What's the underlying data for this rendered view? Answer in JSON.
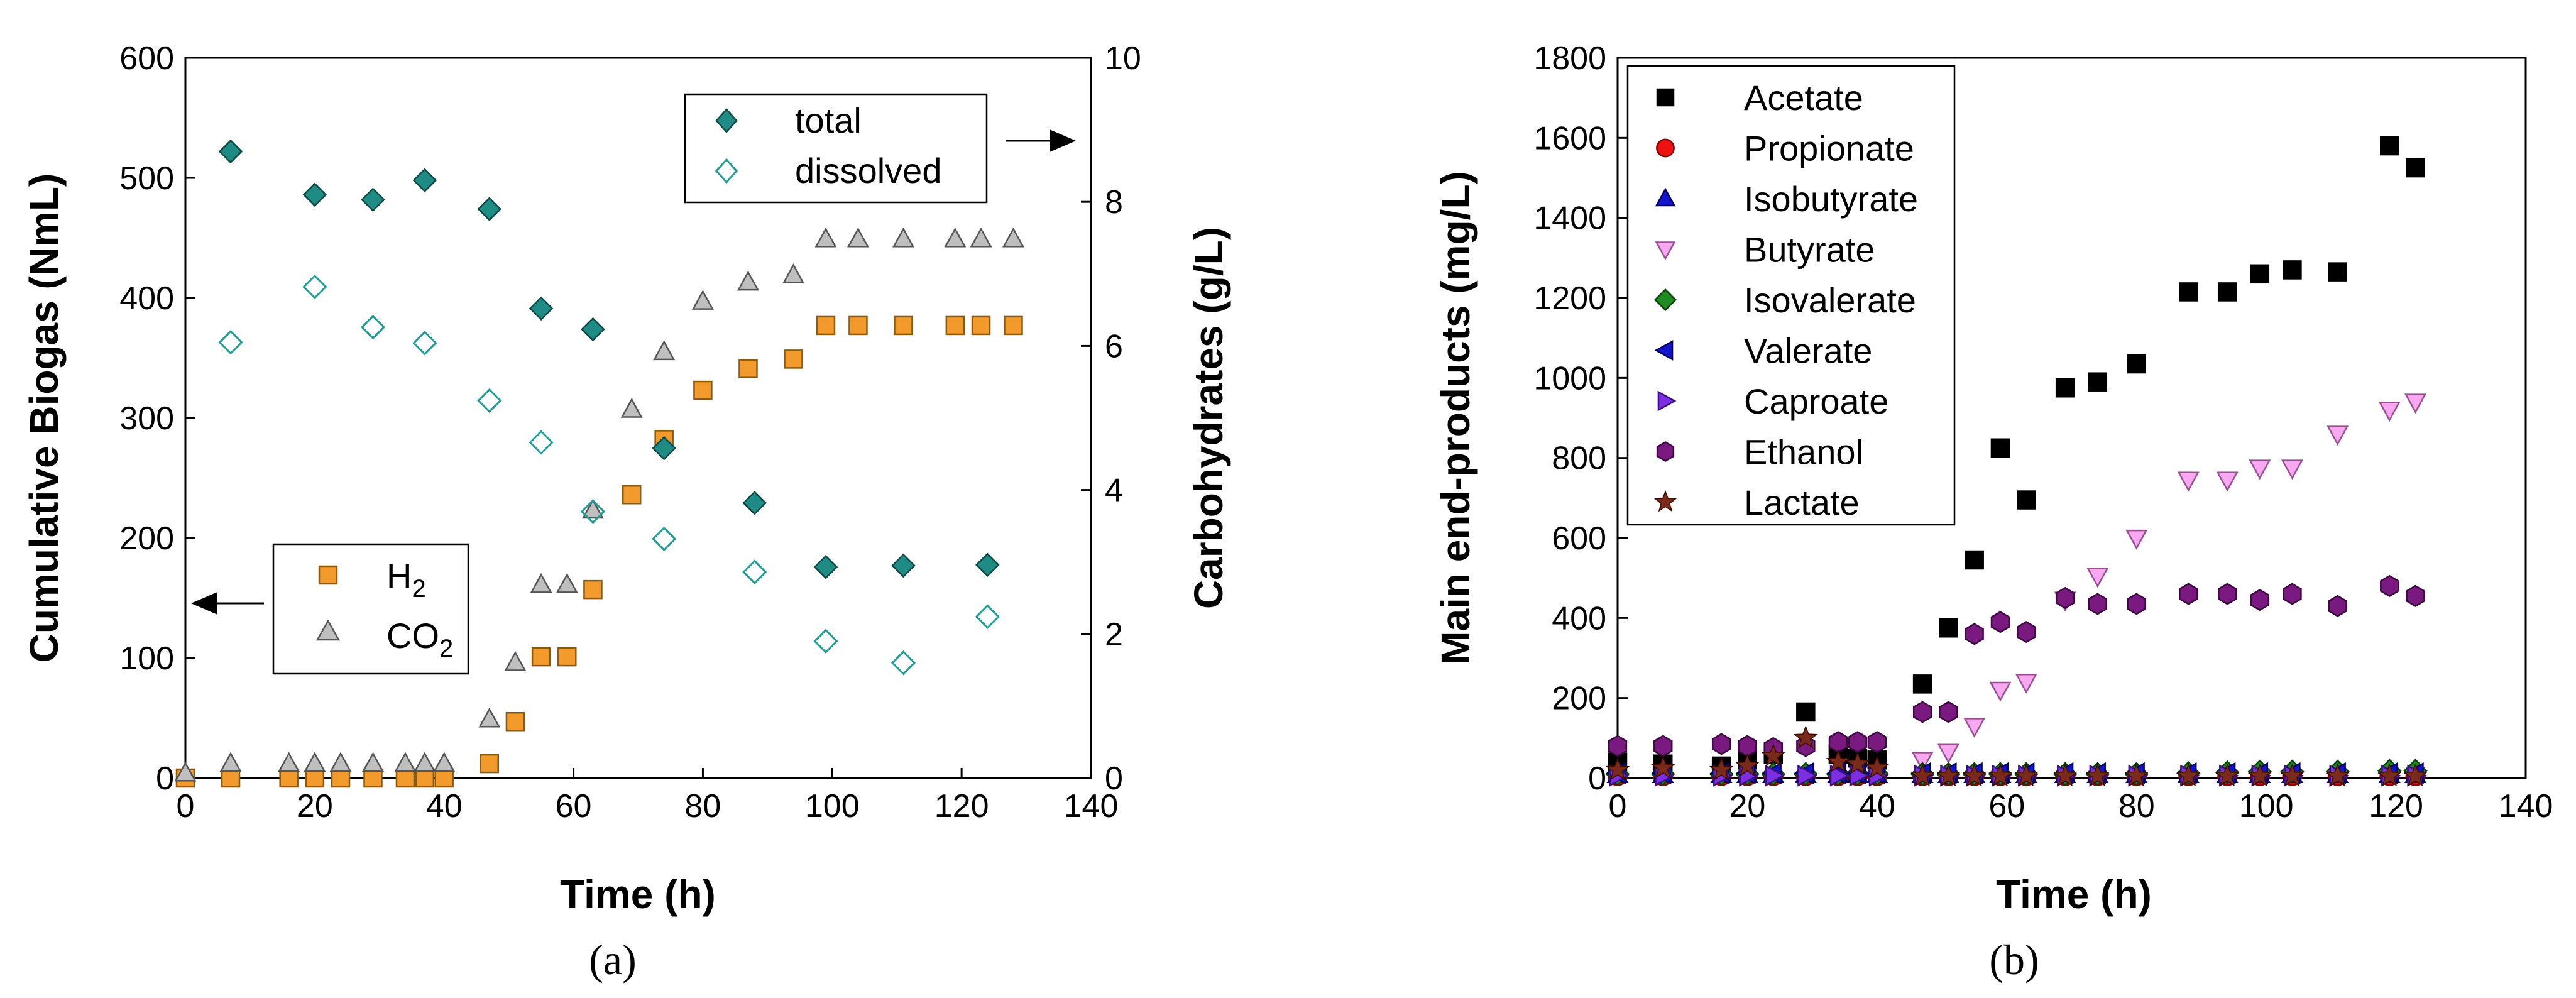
{
  "chart_data": [
    {
      "panel": "a",
      "type": "scatter",
      "panel_label": "(a)",
      "xlabel": "Time (h)",
      "ylabel_left": "Cumulative Biogas (NmL)",
      "ylabel_right": "Carbohydrates (g/L)",
      "xlim": [
        0,
        140
      ],
      "ylim_left": [
        0,
        600
      ],
      "ylim_right": [
        0,
        10
      ],
      "xticks": [
        0,
        20,
        40,
        60,
        80,
        100,
        120,
        140
      ],
      "yticks_left": [
        0,
        100,
        200,
        300,
        400,
        500,
        600
      ],
      "yticks_right": [
        0,
        2,
        4,
        6,
        8,
        10
      ],
      "legend_biogas": {
        "h2": "H",
        "h2_sub": "2",
        "co2": "CO",
        "co2_sub": "2"
      },
      "legend_carbs": {
        "total": "total",
        "dissolved": "dissolved"
      },
      "series": [
        {
          "key": "h2",
          "name": "H2",
          "axis": "left",
          "marker": "square",
          "fill": "#F39A2C",
          "stroke": "#8a5a10",
          "x": [
            0,
            7,
            16,
            20,
            24,
            29,
            34,
            37,
            40,
            47,
            51,
            55,
            59,
            63,
            69,
            74,
            80,
            87,
            94,
            99,
            104,
            111,
            119,
            123,
            128
          ],
          "y": [
            0,
            0,
            0,
            0,
            0,
            0,
            0,
            0,
            0,
            12,
            47,
            101,
            101,
            157,
            236,
            282,
            323,
            341,
            349,
            377,
            377,
            377,
            377,
            377,
            377
          ]
        },
        {
          "key": "co2",
          "name": "CO2",
          "axis": "left",
          "marker": "triangle",
          "fill": "#BFBFBF",
          "stroke": "#555555",
          "x": [
            0,
            7,
            16,
            20,
            24,
            29,
            34,
            37,
            40,
            47,
            51,
            55,
            59,
            63,
            69,
            74,
            80,
            87,
            94,
            99,
            104,
            111,
            119,
            123,
            128
          ],
          "y": [
            4,
            12,
            12,
            12,
            12,
            12,
            12,
            12,
            12,
            49,
            96,
            161,
            161,
            223,
            307,
            355,
            397,
            413,
            419,
            449,
            449,
            449,
            449,
            449,
            449
          ]
        },
        {
          "key": "total",
          "name": "total",
          "axis": "right",
          "marker": "diamond",
          "fill": "#1E8C84",
          "stroke": "#0d4a46",
          "x": [
            7,
            20,
            29,
            37,
            47,
            55,
            63,
            74,
            88,
            99,
            111,
            124
          ],
          "y": [
            8.7,
            8.1,
            8.03,
            8.3,
            7.9,
            6.52,
            6.23,
            4.58,
            3.82,
            2.93,
            2.95,
            2.96
          ]
        },
        {
          "key": "dissolved",
          "name": "dissolved",
          "axis": "right",
          "marker": "diamond-open",
          "fill": "none",
          "stroke": "#1E9E96",
          "x": [
            7,
            20,
            29,
            37,
            47,
            55,
            63,
            74,
            88,
            99,
            111,
            124
          ],
          "y": [
            6.05,
            6.82,
            6.26,
            6.04,
            5.24,
            4.66,
            3.7,
            3.32,
            2.86,
            1.9,
            1.6,
            2.24
          ]
        }
      ]
    },
    {
      "panel": "b",
      "type": "scatter",
      "panel_label": "(b)",
      "xlabel": "Time (h)",
      "ylabel": "Main end-products (mg/L)",
      "xlim": [
        0,
        140
      ],
      "ylim": [
        0,
        1800
      ],
      "xticks": [
        0,
        20,
        40,
        60,
        80,
        100,
        120,
        140
      ],
      "yticks": [
        0,
        200,
        400,
        600,
        800,
        1000,
        1200,
        1400,
        1600,
        1800
      ],
      "series": [
        {
          "name": "Acetate",
          "marker": "square",
          "fill": "#000000",
          "stroke": "#000000",
          "x": [
            0,
            7,
            16,
            20,
            24,
            29,
            34,
            37,
            40,
            47,
            51,
            55,
            59,
            63,
            69,
            74,
            80,
            88,
            94,
            99,
            104,
            111,
            119,
            123
          ],
          "y": [
            40,
            35,
            30,
            45,
            60,
            165,
            60,
            50,
            45,
            235,
            375,
            545,
            825,
            695,
            975,
            990,
            1035,
            1215,
            1215,
            1260,
            1270,
            1265,
            1580,
            1525
          ]
        },
        {
          "name": "Propionate",
          "marker": "circle",
          "fill": "#EE1111",
          "stroke": "#880000",
          "x": [
            0,
            7,
            16,
            20,
            24,
            29,
            34,
            37,
            40,
            47,
            51,
            55,
            59,
            63,
            69,
            74,
            80,
            88,
            94,
            99,
            104,
            111,
            119,
            123
          ],
          "y": [
            5,
            5,
            5,
            5,
            5,
            5,
            5,
            5,
            5,
            5,
            5,
            5,
            5,
            5,
            5,
            5,
            5,
            5,
            5,
            5,
            5,
            5,
            5,
            5
          ]
        },
        {
          "name": "Isobutyrate",
          "marker": "triangle",
          "fill": "#1414CC",
          "stroke": "#000066",
          "x": [
            0,
            7,
            16,
            20,
            24,
            29,
            34,
            37,
            40,
            47,
            51,
            55,
            59,
            63,
            69,
            74,
            80,
            88,
            94,
            99,
            104,
            111,
            119,
            123
          ],
          "y": [
            8,
            8,
            8,
            8,
            8,
            8,
            8,
            8,
            8,
            8,
            8,
            8,
            8,
            8,
            8,
            8,
            8,
            8,
            8,
            8,
            8,
            8,
            8,
            8
          ]
        },
        {
          "name": "Butyrate",
          "marker": "triangle-down",
          "fill": "#F7A8F0",
          "stroke": "#9a4f93",
          "x": [
            47,
            51,
            55,
            59,
            63,
            69,
            74,
            80,
            88,
            94,
            99,
            104,
            111,
            119,
            123
          ],
          "y": [
            45,
            65,
            130,
            220,
            240,
            445,
            505,
            600,
            745,
            745,
            775,
            775,
            860,
            920,
            940
          ]
        },
        {
          "name": "Isovalerate",
          "marker": "diamond",
          "fill": "#1E8C1E",
          "stroke": "#0a400a",
          "x": [
            0,
            7,
            16,
            20,
            24,
            29,
            34,
            37,
            40,
            47,
            51,
            55,
            59,
            63,
            69,
            74,
            80,
            88,
            94,
            99,
            104,
            111,
            119,
            123
          ],
          "y": [
            10,
            10,
            10,
            10,
            10,
            10,
            10,
            10,
            10,
            10,
            10,
            10,
            10,
            10,
            10,
            10,
            10,
            12,
            14,
            16,
            16,
            16,
            18,
            18
          ]
        },
        {
          "name": "Valerate",
          "marker": "triangle-left",
          "fill": "#1414CC",
          "stroke": "#000066",
          "x": [
            0,
            7,
            16,
            20,
            24,
            29,
            34,
            37,
            40,
            47,
            51,
            55,
            59,
            63,
            69,
            74,
            80,
            88,
            94,
            99,
            104,
            111,
            119,
            123
          ],
          "y": [
            12,
            12,
            12,
            12,
            12,
            12,
            12,
            12,
            12,
            12,
            12,
            12,
            12,
            12,
            12,
            12,
            12,
            12,
            12,
            12,
            12,
            12,
            12,
            12
          ]
        },
        {
          "name": "Caproate",
          "marker": "triangle-right",
          "fill": "#7B2FE0",
          "stroke": "#3a0f80",
          "x": [
            0,
            7,
            16,
            20,
            24,
            29,
            34,
            37,
            40,
            47,
            51,
            55,
            59,
            63,
            69,
            74,
            80,
            88,
            94,
            99,
            104,
            111,
            119,
            123
          ],
          "y": [
            6,
            6,
            6,
            6,
            6,
            6,
            6,
            6,
            6,
            6,
            6,
            6,
            6,
            6,
            6,
            6,
            6,
            6,
            6,
            6,
            6,
            6,
            6,
            6
          ]
        },
        {
          "name": "Ethanol",
          "marker": "hexagon",
          "fill": "#7A1A80",
          "stroke": "#3a0a40",
          "x": [
            0,
            7,
            16,
            20,
            24,
            29,
            34,
            37,
            40,
            47,
            51,
            55,
            59,
            63,
            69,
            74,
            80,
            88,
            94,
            99,
            104,
            111,
            119,
            123
          ],
          "y": [
            80,
            80,
            85,
            80,
            75,
            80,
            90,
            90,
            90,
            165,
            165,
            360,
            390,
            365,
            450,
            435,
            435,
            460,
            460,
            445,
            460,
            430,
            480,
            455
          ]
        },
        {
          "name": "Lactate",
          "marker": "star",
          "fill": "#7A2A1A",
          "stroke": "#3a0a00",
          "x": [
            0,
            7,
            16,
            20,
            24,
            29,
            34,
            37,
            40,
            47,
            51,
            55,
            59,
            63,
            69,
            74,
            80,
            88,
            94,
            99,
            104,
            111,
            119,
            123
          ],
          "y": [
            20,
            25,
            20,
            30,
            55,
            100,
            40,
            35,
            25,
            5,
            5,
            5,
            5,
            5,
            5,
            5,
            5,
            5,
            5,
            5,
            5,
            5,
            5,
            5
          ]
        }
      ]
    }
  ]
}
